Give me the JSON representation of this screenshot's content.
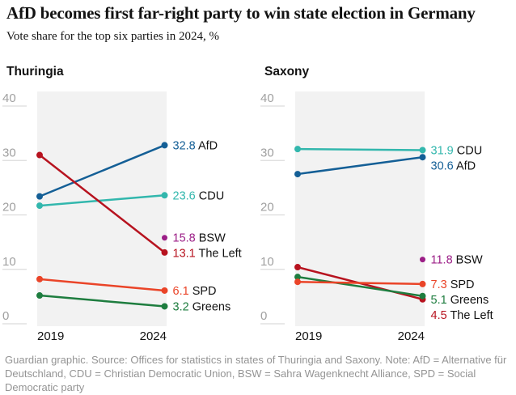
{
  "header": {
    "title": "AfD becomes first far-right party to win state election in Germany",
    "subtitle": "Vote share for the top six parties in 2024, %"
  },
  "footer": {
    "text": "Guardian graphic. Source: Offices for statistics in states of Thuringia and Saxony. Note: AfD = Alternative für Deutschland, CDU = Christian Democratic Union, BSW = Sahra Wagenknecht Alliance, SPD = Social Democratic party"
  },
  "colors": {
    "afd": "#145f96",
    "cdu": "#32b7ad",
    "bsw": "#9c1f87",
    "the_left": "#b7131f",
    "spd": "#ea4428",
    "greens": "#1e7d3f",
    "plot_background": "#f2f2f2",
    "tick_line": "#dcdcdc",
    "axis_text": "#a0a0a0",
    "text": "#121212",
    "footer_text": "#949494"
  },
  "chart_data": [
    {
      "type": "line",
      "title": "Thuringia",
      "x": [
        "2019",
        "2024"
      ],
      "ylim": [
        0,
        40
      ],
      "y_ticks": [
        40,
        30,
        20,
        10,
        0
      ],
      "grid": "left-ticks-only",
      "legend_position": "right-end-labels",
      "series": [
        {
          "name": "AfD",
          "color": "#145f96",
          "values": [
            23.4,
            32.8
          ],
          "end_label": "32.8 AfD"
        },
        {
          "name": "CDU",
          "color": "#32b7ad",
          "values": [
            21.7,
            23.6
          ],
          "end_label": "23.6 CDU"
        },
        {
          "name": "BSW",
          "color": "#9c1f87",
          "values": [
            null,
            15.8
          ],
          "end_label": "15.8 BSW"
        },
        {
          "name": "The Left",
          "color": "#b7131f",
          "values": [
            31.0,
            13.1
          ],
          "end_label": "13.1 The Left"
        },
        {
          "name": "SPD",
          "color": "#ea4428",
          "values": [
            8.2,
            6.1
          ],
          "end_label": "6.1 SPD"
        },
        {
          "name": "Greens",
          "color": "#1e7d3f",
          "values": [
            5.2,
            3.2
          ],
          "end_label": "3.2 Greens"
        }
      ]
    },
    {
      "type": "line",
      "title": "Saxony",
      "x": [
        "2019",
        "2024"
      ],
      "ylim": [
        0,
        40
      ],
      "y_ticks": [
        40,
        30,
        20,
        10,
        0
      ],
      "grid": "left-ticks-only",
      "legend_position": "right-end-labels",
      "series": [
        {
          "name": "CDU",
          "color": "#32b7ad",
          "values": [
            32.1,
            31.9
          ],
          "end_label": "31.9 CDU"
        },
        {
          "name": "AfD",
          "color": "#145f96",
          "values": [
            27.5,
            30.6
          ],
          "end_label": "30.6 AfD"
        },
        {
          "name": "BSW",
          "color": "#9c1f87",
          "values": [
            null,
            11.8
          ],
          "end_label": "11.8 BSW"
        },
        {
          "name": "The Left",
          "color": "#b7131f",
          "values": [
            10.4,
            4.5
          ],
          "end_label": "4.5 The Left"
        },
        {
          "name": "Greens",
          "color": "#1e7d3f",
          "values": [
            8.6,
            5.1
          ],
          "end_label": "5.1 Greens"
        },
        {
          "name": "SPD",
          "color": "#ea4428",
          "values": [
            7.7,
            7.3
          ],
          "end_label": "7.3 SPD"
        }
      ]
    }
  ]
}
